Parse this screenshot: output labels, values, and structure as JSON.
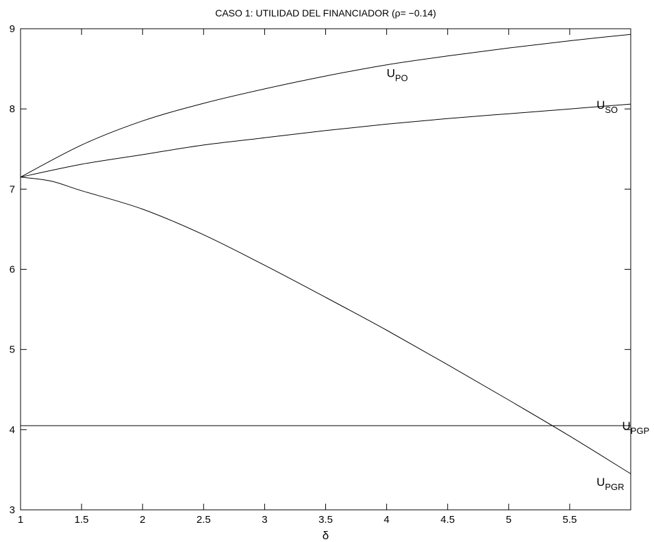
{
  "chart_data": {
    "type": "line",
    "title": "CASO 1: UTILIDAD DEL FINANCIADOR (ρ= −0.14)",
    "xlabel": "δ",
    "ylabel": "",
    "xlim": [
      1,
      6
    ],
    "ylim": [
      3,
      9
    ],
    "x_ticks": [
      1,
      1.5,
      2,
      2.5,
      3,
      3.5,
      4,
      4.5,
      5,
      5.5
    ],
    "x_tick_labels": [
      "1",
      "1.5",
      "2",
      "2.5",
      "3",
      "3.5",
      "4",
      "4.5",
      "5",
      "5.5"
    ],
    "y_ticks": [
      3,
      4,
      5,
      6,
      7,
      8,
      9
    ],
    "y_tick_labels": [
      "3",
      "4",
      "5",
      "6",
      "7",
      "8",
      "9"
    ],
    "grid": false,
    "legend": "none",
    "series": [
      {
        "label_main": "U",
        "label_sub": "PO",
        "label_x": 4.0,
        "label_y": 8.4,
        "x": [
          1.0,
          1.5,
          2.0,
          2.5,
          3.0,
          3.5,
          4.0,
          4.5,
          5.0,
          5.5,
          6.0
        ],
        "y": [
          7.15,
          7.55,
          7.85,
          8.07,
          8.25,
          8.41,
          8.55,
          8.66,
          8.76,
          8.85,
          8.93
        ]
      },
      {
        "label_main": "U",
        "label_sub": "SO",
        "label_x": 5.72,
        "label_y": 8.0,
        "x": [
          1.0,
          1.5,
          2.0,
          2.5,
          3.0,
          3.5,
          4.0,
          4.5,
          5.0,
          5.5,
          6.0
        ],
        "y": [
          7.15,
          7.31,
          7.43,
          7.55,
          7.64,
          7.73,
          7.81,
          7.88,
          7.94,
          8.0,
          8.06
        ]
      },
      {
        "label_main": "U",
        "label_sub": "PGR",
        "label_x": 5.72,
        "label_y": 3.3,
        "x": [
          1.0,
          1.25,
          1.5,
          2.0,
          2.5,
          3.0,
          3.5,
          4.0,
          4.5,
          5.0,
          5.5,
          6.0
        ],
        "y": [
          7.15,
          7.1,
          6.98,
          6.75,
          6.43,
          6.05,
          5.65,
          5.24,
          4.81,
          4.37,
          3.92,
          3.45
        ]
      },
      {
        "label_main": "U",
        "label_sub": "PGP",
        "label_x": 5.93,
        "label_y": 4.0,
        "x": [
          1.0,
          6.0
        ],
        "y": [
          4.05,
          4.05
        ]
      }
    ]
  }
}
